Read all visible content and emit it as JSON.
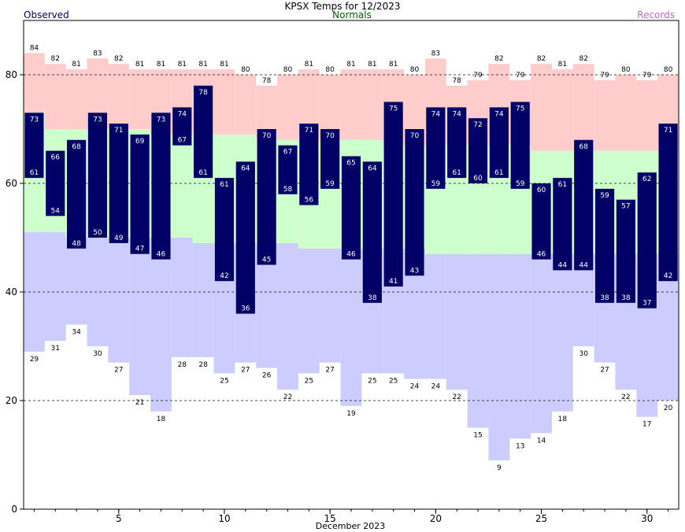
{
  "chart_data": {
    "type": "bar",
    "title": "KPSX Temps for 12/2023",
    "xlabel": "December 2023",
    "ylabel": "",
    "legend": [
      {
        "label": "Observed",
        "color": "#000066",
        "placement": "top-left"
      },
      {
        "label": "Normals",
        "color": "#006600",
        "placement": "top-center"
      },
      {
        "label": "Records",
        "color": "#cc66cc",
        "placement": "top-right"
      }
    ],
    "xlim": [
      0.5,
      31.5
    ],
    "ylim": [
      0,
      90
    ],
    "x_ticks": [
      5,
      10,
      15,
      20,
      25,
      30
    ],
    "y_ticks": [
      0,
      20,
      40,
      60,
      80
    ],
    "dashed_gridlines": [
      20,
      40,
      60,
      80
    ],
    "days": [
      1,
      2,
      3,
      4,
      5,
      6,
      7,
      8,
      9,
      10,
      11,
      12,
      13,
      14,
      15,
      16,
      17,
      18,
      19,
      20,
      21,
      22,
      23,
      24,
      25,
      26,
      27,
      28,
      29,
      30,
      31
    ],
    "series": [
      {
        "name": "Observed",
        "role": "observed_high",
        "values": [
          73,
          66,
          68,
          73,
          71,
          69,
          73,
          74,
          78,
          61,
          64,
          70,
          67,
          71,
          70,
          65,
          64,
          75,
          70,
          74,
          74,
          72,
          74,
          75,
          60,
          61,
          68,
          59,
          57,
          62,
          71
        ]
      },
      {
        "name": "Observed",
        "role": "observed_low",
        "values": [
          61,
          54,
          48,
          50,
          49,
          47,
          46,
          67,
          61,
          42,
          36,
          45,
          58,
          56,
          59,
          46,
          38,
          41,
          43,
          59,
          61,
          60,
          61,
          59,
          46,
          44,
          44,
          38,
          38,
          37,
          42
        ]
      },
      {
        "name": "Normals",
        "role": "normal_high",
        "values": [
          73,
          70,
          70,
          70,
          70,
          70,
          69,
          69,
          69,
          69,
          69,
          68,
          68,
          68,
          68,
          68,
          68,
          67,
          67,
          67,
          67,
          67,
          67,
          67,
          66,
          66,
          66,
          66,
          66,
          66,
          66
        ]
      },
      {
        "name": "Normals",
        "role": "normal_low",
        "values": [
          51,
          51,
          50,
          50,
          50,
          50,
          50,
          50,
          49,
          49,
          49,
          49,
          49,
          48,
          48,
          48,
          48,
          48,
          48,
          47,
          47,
          47,
          47,
          47,
          47,
          47,
          47,
          47,
          47,
          47,
          47
        ]
      },
      {
        "name": "Records",
        "role": "record_high",
        "values": [
          84,
          82,
          81,
          83,
          82,
          81,
          81,
          81,
          81,
          81,
          80,
          78,
          80,
          81,
          80,
          81,
          81,
          81,
          80,
          83,
          78,
          79,
          82,
          79,
          82,
          81,
          82,
          79,
          80,
          79,
          80
        ]
      },
      {
        "name": "Records",
        "role": "record_low",
        "values": [
          29,
          31,
          34,
          30,
          27,
          21,
          18,
          28,
          28,
          25,
          27,
          26,
          22,
          25,
          27,
          19,
          25,
          25,
          24,
          24,
          22,
          15,
          9,
          13,
          14,
          18,
          30,
          27,
          22,
          17,
          20
        ]
      }
    ]
  }
}
